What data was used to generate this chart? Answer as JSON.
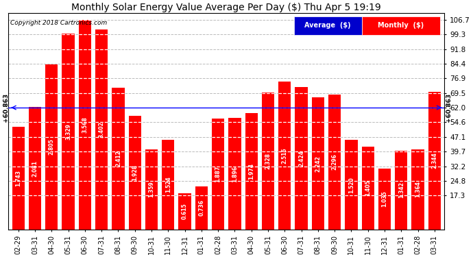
{
  "title": "Monthly Solar Energy Value Average Per Day ($) Thu Apr 5 19:19",
  "copyright": "Copyright 2018 Cartronics.com",
  "categories": [
    "02-29",
    "03-31",
    "04-30",
    "05-31",
    "06-30",
    "07-31",
    "08-31",
    "09-30",
    "10-31",
    "11-30",
    "12-31",
    "01-31",
    "02-28",
    "03-31",
    "04-30",
    "05-31",
    "06-30",
    "07-31",
    "08-31",
    "09-30",
    "10-31",
    "11-30",
    "12-31",
    "01-31",
    "02-28",
    "03-31"
  ],
  "values": [
    1.743,
    2.081,
    2.805,
    3.329,
    3.568,
    3.402,
    2.412,
    1.928,
    1.359,
    1.524,
    0.615,
    0.736,
    1.887,
    1.896,
    1.974,
    2.328,
    2.515,
    2.424,
    2.242,
    2.296,
    1.52,
    1.405,
    1.035,
    1.342,
    1.364,
    2.344
  ],
  "average_dollar": 60.863,
  "bar_color": "#FF0000",
  "avg_line_color": "#0000FF",
  "background_color": "#FFFFFF",
  "grid_color": "#BBBBBB",
  "title_fontsize": 10,
  "tick_fontsize": 7,
  "ylabel_values": [
    17.3,
    24.8,
    32.2,
    39.7,
    47.1,
    54.6,
    62.0,
    69.5,
    76.9,
    84.4,
    91.8,
    99.3,
    106.7
  ],
  "avg_line_y": 62.0,
  "scale": 29.93,
  "grid_step": 7.5,
  "bar_width": 0.75,
  "ylim_min": 0,
  "ylim_max": 110.0,
  "xlim_lo": -0.6,
  "legend_blue_label": "Average  ($)",
  "legend_red_label": "Monthly  ($)"
}
